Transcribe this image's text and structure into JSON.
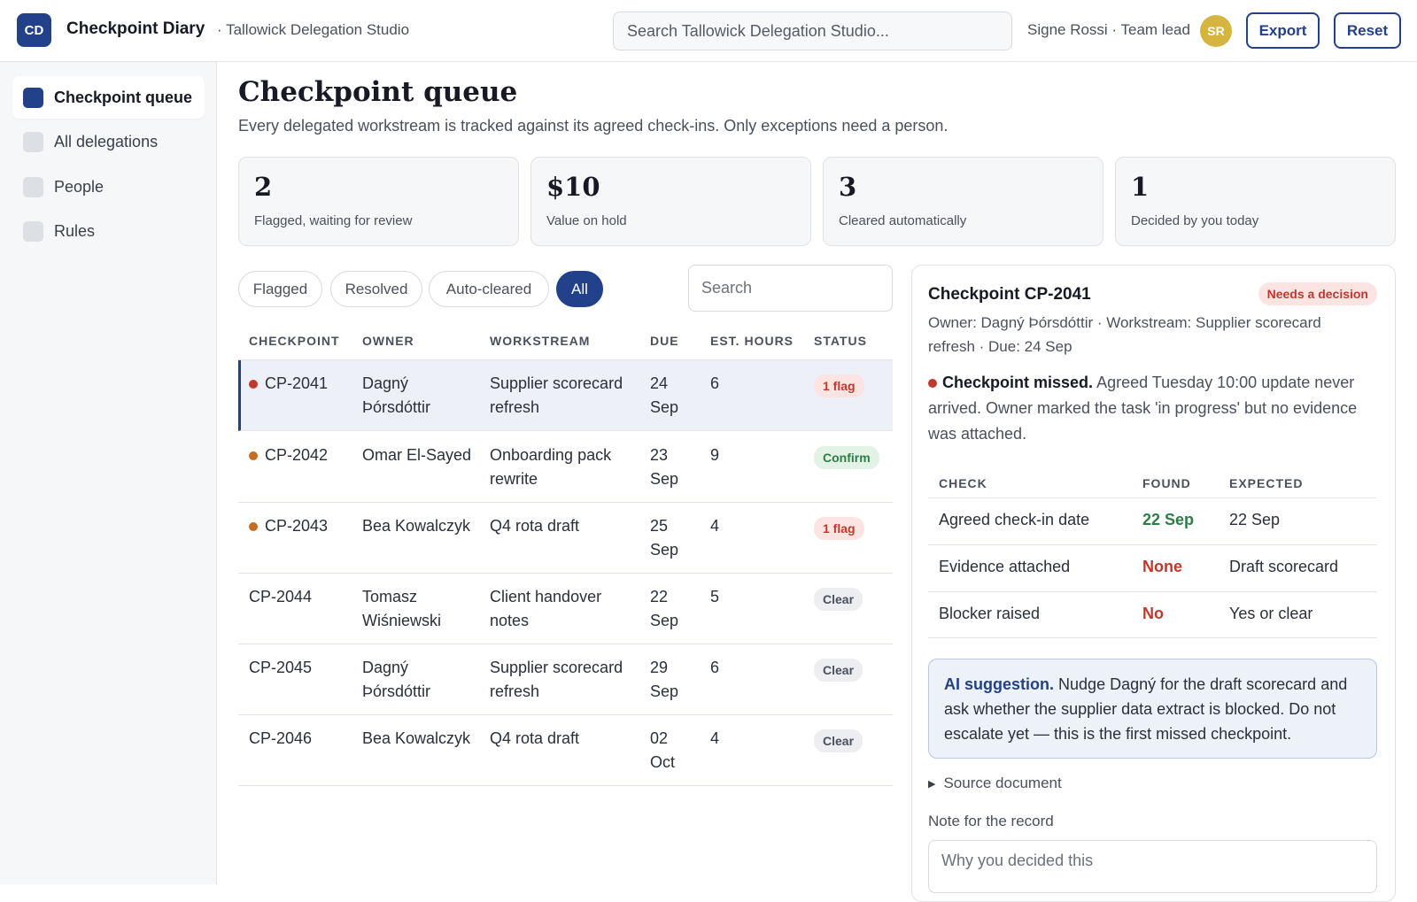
{
  "header": {
    "logo_text": "CD",
    "app_title": "Checkpoint Diary",
    "workspace": "· Tallowick Delegation Studio",
    "search_placeholder": "Search Tallowick Delegation Studio...",
    "user": "Signe Rossi · Team lead",
    "avatar_initials": "SR",
    "export_label": "Export",
    "reset_label": "Reset"
  },
  "sidebar": {
    "items": [
      {
        "label": "Checkpoint queue",
        "active": true
      },
      {
        "label": "All delegations",
        "active": false
      },
      {
        "label": "People",
        "active": false
      },
      {
        "label": "Rules",
        "active": false
      }
    ]
  },
  "main": {
    "title": "Checkpoint queue",
    "subtitle": "Every delegated workstream is tracked against its agreed check-ins. Only exceptions need a person.",
    "stats": [
      {
        "value": "2",
        "label": "Flagged, waiting for review"
      },
      {
        "value": "$10",
        "label": "Value on hold"
      },
      {
        "value": "3",
        "label": "Cleared automatically"
      },
      {
        "value": "1",
        "label": "Decided by you today"
      }
    ],
    "filters": [
      "Flagged",
      "Resolved",
      "Auto-cleared",
      "All"
    ],
    "active_filter": "All",
    "search_placeholder": "Search"
  },
  "table": {
    "columns": [
      "CHECKPOINT",
      "OWNER",
      "WORKSTREAM",
      "DUE",
      "EST. HOURS",
      "STATUS"
    ],
    "rows": [
      {
        "id": "CP-2041",
        "owner": "Dagný Þórsdóttir",
        "workstream": "Supplier scorecard refresh",
        "due": "24 Sep",
        "hours": "6",
        "status": "1 flag"
      },
      {
        "id": "CP-2042",
        "owner": "Omar El-Sayed",
        "workstream": "Onboarding pack rewrite",
        "due": "23 Sep",
        "hours": "9",
        "status": "Confirm"
      },
      {
        "id": "CP-2043",
        "owner": "Bea Kowalczyk",
        "workstream": "Q4 rota draft",
        "due": "25 Sep",
        "hours": "4",
        "status": "1 flag"
      },
      {
        "id": "CP-2044",
        "owner": "Tomasz Wiśniewski",
        "workstream": "Client handover notes",
        "due": "22 Sep",
        "hours": "5",
        "status": "Clear"
      },
      {
        "id": "CP-2045",
        "owner": "Dagný Þórsdóttir",
        "workstream": "Supplier scorecard refresh",
        "due": "29 Sep",
        "hours": "6",
        "status": "Clear"
      },
      {
        "id": "CP-2046",
        "owner": "Bea Kowalczyk",
        "workstream": "Q4 rota draft",
        "due": "02 Oct",
        "hours": "4",
        "status": "Clear"
      }
    ]
  },
  "detail": {
    "title": "Checkpoint CP-2041",
    "badge": "Needs a decision",
    "meta": "Owner: Dagný Þórsdóttir · Workstream: Supplier scorecard refresh · Due: 24 Sep",
    "alert_title": "Checkpoint missed.",
    "alert_text": "Agreed Tuesday 10:00 update never arrived. Owner marked the task 'in progress' but no evidence was attached.",
    "checks_columns": [
      "CHECK",
      "FOUND",
      "EXPECTED"
    ],
    "checks": [
      {
        "check": "Agreed check-in date",
        "found": "22 Sep",
        "expected": "22 Sep"
      },
      {
        "check": "Evidence attached",
        "found": "None",
        "expected": "Draft scorecard"
      },
      {
        "check": "Blocker raised",
        "found": "No",
        "expected": "Yes or clear"
      }
    ],
    "ai_label": "AI suggestion.",
    "ai_text": "Nudge Dagný for the draft scorecard and ask whether the supplier data extract is blocked. Do not escalate yet — this is the first missed checkpoint.",
    "source_label": "Source document",
    "note_label": "Note for the record",
    "note_placeholder": "Why you decided this"
  },
  "colors": {
    "accent": "#22418a",
    "flag": "#c0392b",
    "ok": "#2e7d46",
    "avatar": "#d5b53f"
  }
}
